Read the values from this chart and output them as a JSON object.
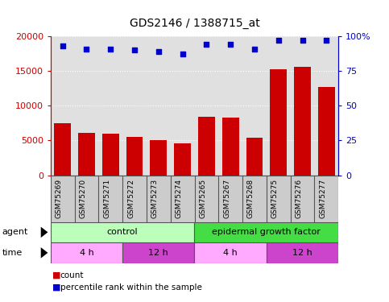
{
  "title": "GDS2146 / 1388715_at",
  "samples": [
    "GSM75269",
    "GSM75270",
    "GSM75271",
    "GSM75272",
    "GSM75273",
    "GSM75274",
    "GSM75265",
    "GSM75267",
    "GSM75268",
    "GSM75275",
    "GSM75276",
    "GSM75277"
  ],
  "counts": [
    7500,
    6100,
    5950,
    5550,
    5000,
    4600,
    8400,
    8300,
    5350,
    15300,
    15600,
    12700
  ],
  "percentiles": [
    93,
    91,
    91,
    90,
    89,
    87,
    94,
    94,
    91,
    97,
    97,
    97
  ],
  "bar_color": "#cc0000",
  "dot_color": "#0000cc",
  "ylim_left": [
    0,
    20000
  ],
  "ylim_right": [
    0,
    100
  ],
  "yticks_left": [
    0,
    5000,
    10000,
    15000,
    20000
  ],
  "yticks_right": [
    0,
    25,
    50,
    75,
    100
  ],
  "ytick_labels_left": [
    "0",
    "5000",
    "10000",
    "15000",
    "20000"
  ],
  "ytick_labels_right": [
    "0",
    "25",
    "50",
    "75",
    "100%"
  ],
  "agent_control_color": "#bbffbb",
  "agent_egf_color": "#44dd44",
  "time_4h_color": "#ffaaff",
  "time_12h_color": "#cc44cc",
  "plot_bg_color": "#e0e0e0",
  "label_bg_color": "#cccccc",
  "grid_color": "#ffffff",
  "left_axis_color": "#cc0000",
  "right_axis_color": "#0000cc",
  "n_samples": 12,
  "n_control": 6,
  "n_egf": 6,
  "n_4h_control": 3,
  "n_12h_control": 3,
  "n_4h_egf": 3,
  "n_12h_egf": 3
}
